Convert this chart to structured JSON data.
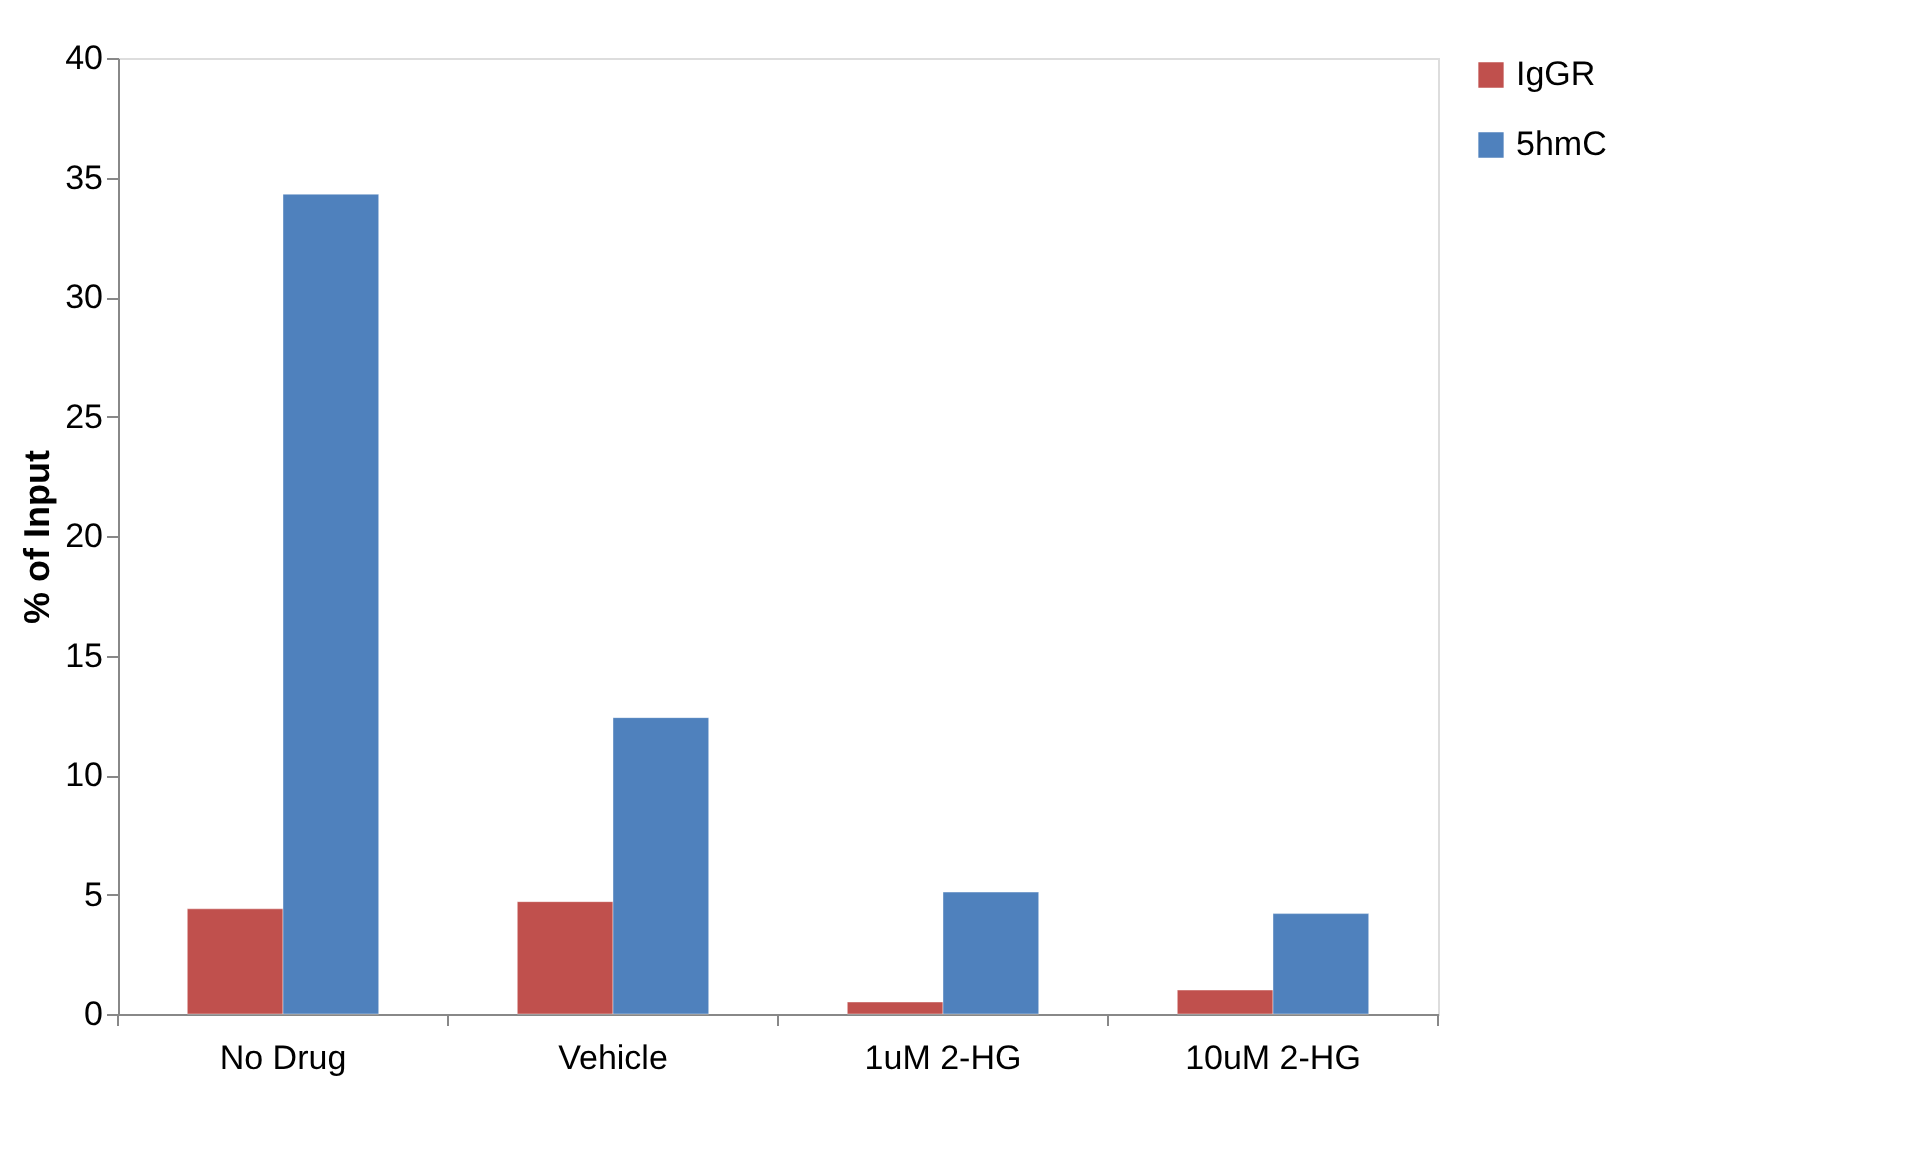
{
  "chart_data": {
    "type": "bar",
    "ylabel": "% of Input",
    "categories": [
      "No Drug",
      "Vehicle",
      "1uM 2-HG",
      "10uM 2-HG"
    ],
    "series": [
      {
        "name": "IgGR",
        "color": "#c0504d",
        "values": [
          4.4,
          4.7,
          0.5,
          1.0
        ]
      },
      {
        "name": "5hmC",
        "color": "#4f81bd",
        "values": [
          34.3,
          12.4,
          5.1,
          4.2
        ]
      }
    ],
    "ylim": [
      0,
      40
    ],
    "yticks": [
      0,
      5,
      10,
      15,
      20,
      25,
      30,
      35,
      40
    ],
    "grid": false,
    "legend": "right"
  }
}
